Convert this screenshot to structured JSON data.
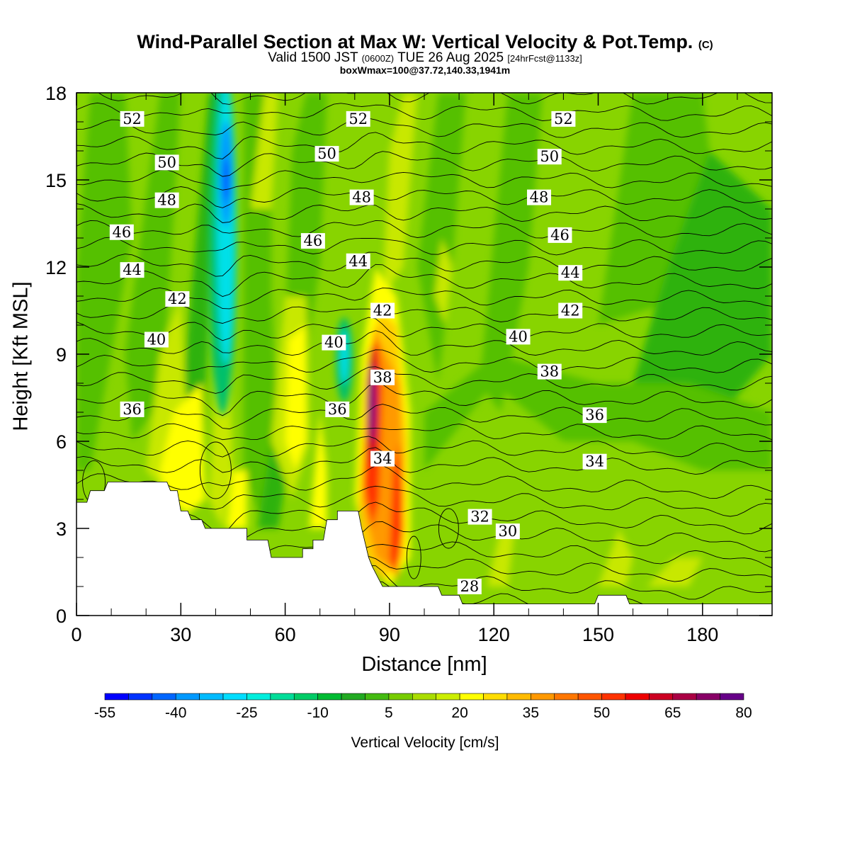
{
  "chart_data": {
    "type": "heatmap",
    "title_main": "Wind-Parallel Section at Max W: Vertical Velocity & Pot.Temp.",
    "title_mark": "(C)",
    "subtitle_a": "Valid 1500 JST",
    "subtitle_b": "(0600Z)",
    "subtitle_c": "TUE 26 Aug 2025",
    "subtitle_d": "[24hrFcst@1133z]",
    "subtitle2": "boxWmax=100@37.72,140.33,1941m",
    "xlabel": "Distance [nm]",
    "ylabel": "Height [Kft MSL]",
    "xlim": [
      0,
      200
    ],
    "ylim": [
      0,
      18
    ],
    "xticks": [
      "0",
      "30",
      "60",
      "90",
      "120",
      "150",
      "180"
    ],
    "yticks": [
      "0",
      "3",
      "6",
      "9",
      "12",
      "15",
      "18"
    ],
    "colorbar": {
      "label": "Vertical Velocity [cm/s]",
      "ticks": [
        "-55",
        "-40",
        "-25",
        "-10",
        "5",
        "20",
        "35",
        "50",
        "65",
        "80"
      ],
      "levels": [
        -55,
        -50,
        -45,
        -40,
        -35,
        -30,
        -25,
        -20,
        -15,
        -10,
        -5,
        0,
        5,
        10,
        15,
        20,
        25,
        30,
        35,
        40,
        45,
        50,
        55,
        60,
        65,
        70,
        75,
        80
      ],
      "colors": [
        "#0000ff",
        "#0033ff",
        "#0066ff",
        "#0099ff",
        "#00bbff",
        "#00ddff",
        "#00eedd",
        "#00dd99",
        "#00cc66",
        "#00bb33",
        "#22aa22",
        "#44bb11",
        "#77cc00",
        "#aadd00",
        "#ccee00",
        "#ffff00",
        "#ffdd00",
        "#ffbb00",
        "#ff9900",
        "#ff7700",
        "#ff5500",
        "#ff3300",
        "#ee0000",
        "#cc0022",
        "#aa0044",
        "#880066",
        "#660088"
      ]
    },
    "fill_colors": {
      "background": "#88d400",
      "down_weak": "#55c000",
      "down_mod": "#2fb20f",
      "down_strong": "#00c06a",
      "down_cyan": "#00e0e8",
      "down_blue": "#0099ff",
      "down_core": "#0044ff",
      "up_weak": "#c8e800",
      "up_yellow": "#ffff00",
      "up_mod": "#ffcc00",
      "up_orange": "#ff9900",
      "up_red": "#ff3300",
      "up_dark": "#cc0022",
      "up_core": "#6a0088"
    },
    "terrain_profile": [
      [
        0,
        3.9
      ],
      [
        3,
        3.9
      ],
      [
        4,
        4.3
      ],
      [
        8,
        4.3
      ],
      [
        9,
        4.6
      ],
      [
        26,
        4.6
      ],
      [
        27,
        4.3
      ],
      [
        29,
        4.3
      ],
      [
        30,
        3.6
      ],
      [
        32,
        3.6
      ],
      [
        33,
        3.3
      ],
      [
        36,
        3.3
      ],
      [
        37,
        3.0
      ],
      [
        42,
        3.0
      ],
      [
        43,
        3.0
      ],
      [
        49,
        3.0
      ],
      [
        49,
        2.6
      ],
      [
        55,
        2.6
      ],
      [
        56,
        2.0
      ],
      [
        62,
        2.0
      ],
      [
        63,
        2.0
      ],
      [
        65,
        2.0
      ],
      [
        65,
        2.3
      ],
      [
        68,
        2.3
      ],
      [
        68,
        2.6
      ],
      [
        71,
        2.6
      ],
      [
        72,
        3.3
      ],
      [
        75,
        3.3
      ],
      [
        75,
        3.6
      ],
      [
        81,
        3.6
      ],
      [
        82,
        3.0
      ],
      [
        84,
        2.0
      ],
      [
        85,
        1.7
      ],
      [
        88,
        1.0
      ],
      [
        104,
        1.0
      ],
      [
        105,
        0.7
      ],
      [
        110,
        0.7
      ],
      [
        111,
        0.4
      ],
      [
        122,
        0.4
      ],
      [
        128,
        0.4
      ],
      [
        140,
        0.4
      ],
      [
        149,
        0.4
      ],
      [
        150,
        0.7
      ],
      [
        158,
        0.7
      ],
      [
        159,
        0.4
      ],
      [
        200,
        0.4
      ]
    ],
    "theta_contours": [
      {
        "label": "52",
        "lx": 16,
        "ly": 17.1
      },
      {
        "label": "52",
        "lx": 81,
        "ly": 17.1
      },
      {
        "label": "52",
        "lx": 140,
        "ly": 17.1
      },
      {
        "label": "50",
        "lx": 26,
        "ly": 15.6
      },
      {
        "label": "50",
        "lx": 72,
        "ly": 15.9
      },
      {
        "label": "50",
        "lx": 136,
        "ly": 15.8
      },
      {
        "label": "48",
        "lx": 26,
        "ly": 14.3
      },
      {
        "label": "48",
        "lx": 82,
        "ly": 14.4
      },
      {
        "label": "48",
        "lx": 133,
        "ly": 14.4
      },
      {
        "label": "46",
        "lx": 13,
        "ly": 13.2
      },
      {
        "label": "46",
        "lx": 68,
        "ly": 12.9
      },
      {
        "label": "46",
        "lx": 139,
        "ly": 13.1
      },
      {
        "label": "44",
        "lx": 16,
        "ly": 11.9
      },
      {
        "label": "44",
        "lx": 81,
        "ly": 12.2
      },
      {
        "label": "44",
        "lx": 142,
        "ly": 11.8
      },
      {
        "label": "42",
        "lx": 29,
        "ly": 10.9
      },
      {
        "label": "42",
        "lx": 88,
        "ly": 10.5
      },
      {
        "label": "42",
        "lx": 142,
        "ly": 10.5
      },
      {
        "label": "40",
        "lx": 23,
        "ly": 9.5
      },
      {
        "label": "40",
        "lx": 74,
        "ly": 9.4
      },
      {
        "label": "40",
        "lx": 127,
        "ly": 9.6
      },
      {
        "label": "38",
        "lx": 88,
        "ly": 8.2
      },
      {
        "label": "38",
        "lx": 136,
        "ly": 8.4
      },
      {
        "label": "36",
        "lx": 16,
        "ly": 7.1
      },
      {
        "label": "36",
        "lx": 75,
        "ly": 7.1
      },
      {
        "label": "36",
        "lx": 149,
        "ly": 6.9
      },
      {
        "label": "34",
        "lx": 88,
        "ly": 5.4
      },
      {
        "label": "34",
        "lx": 149,
        "ly": 5.3
      },
      {
        "label": "32",
        "lx": 116,
        "ly": 3.4
      },
      {
        "label": "30",
        "lx": 124,
        "ly": 2.9
      },
      {
        "label": "28",
        "lx": 113,
        "ly": 1.0
      }
    ]
  }
}
